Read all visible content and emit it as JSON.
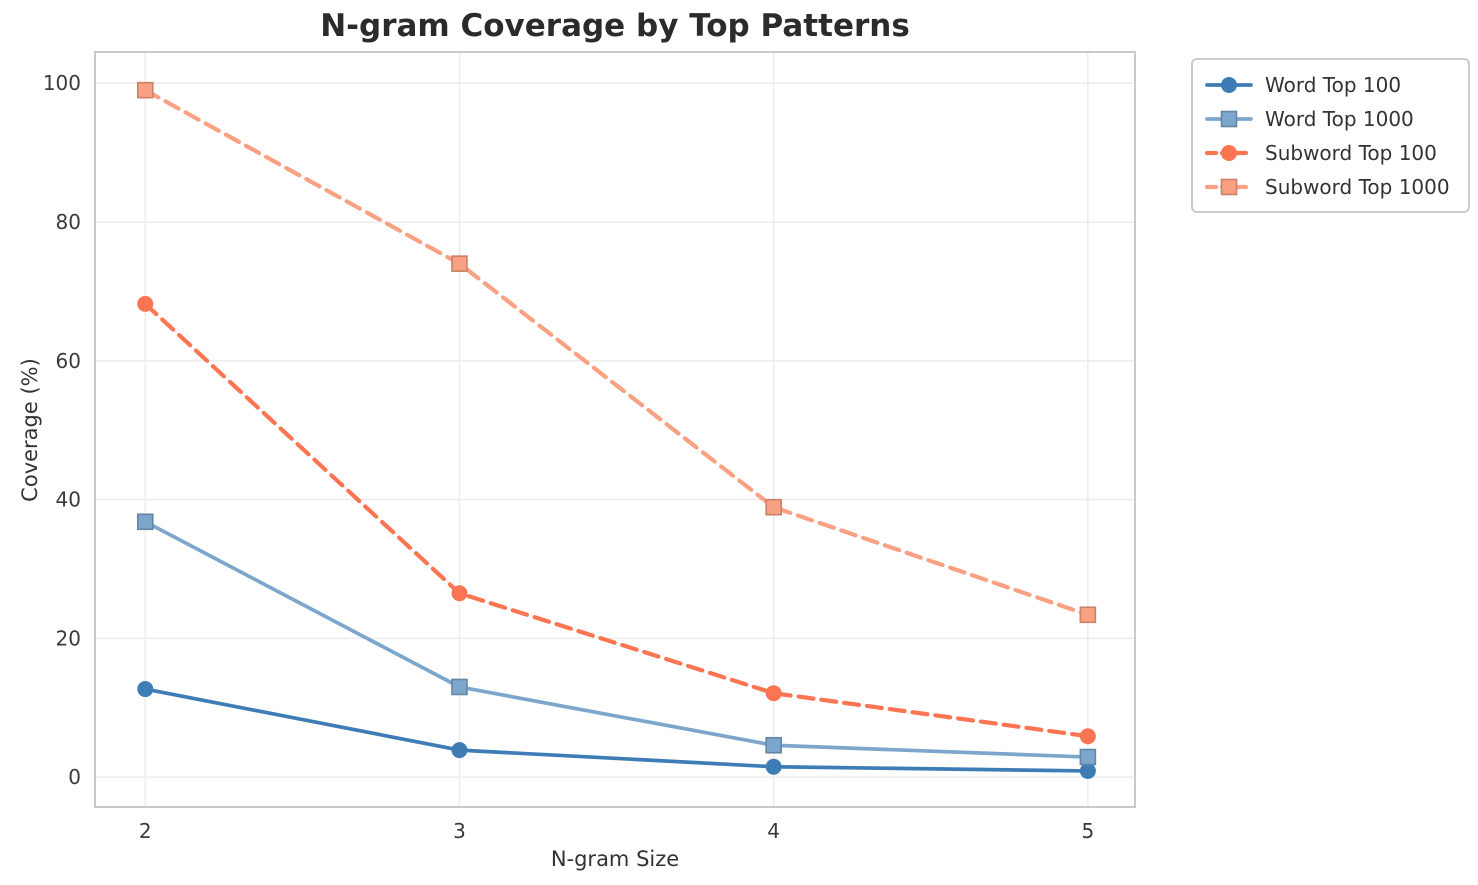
{
  "chart_data": {
    "type": "line",
    "title": "N-gram Coverage by Top Patterns",
    "xlabel": "N-gram Size",
    "ylabel": "Coverage (%)",
    "x": [
      2,
      3,
      4,
      5
    ],
    "x_tick_labels": [
      "2",
      "3",
      "4",
      "5"
    ],
    "y_ticks": [
      0,
      20,
      40,
      60,
      80,
      100
    ],
    "xlim": [
      1.84,
      5.15
    ],
    "ylim": [
      -4.3,
      104.5
    ],
    "grid": true,
    "legend_position": "outside-top-right",
    "colors": {
      "spine": "#c9c9c9",
      "gridline": "#ededed",
      "tick_label": "#3a3a3a",
      "title_text": "#2b2b2b"
    },
    "series": [
      {
        "name": "Word Top 100",
        "values": [
          12.7,
          3.9,
          1.5,
          0.9
        ],
        "color": "#3e7cb6",
        "line_style": "solid",
        "marker": "circle"
      },
      {
        "name": "Word Top 1000",
        "values": [
          36.8,
          13.0,
          4.6,
          2.9
        ],
        "color": "#7da6cd",
        "line_style": "solid",
        "marker": "square"
      },
      {
        "name": "Subword Top 100",
        "values": [
          68.2,
          26.5,
          12.1,
          5.9
        ],
        "color": "#fc7553",
        "line_style": "dashed",
        "marker": "circle"
      },
      {
        "name": "Subword Top 1000",
        "values": [
          99.0,
          74.0,
          38.9,
          23.4
        ],
        "color": "#fba183",
        "line_style": "dashed",
        "marker": "square"
      }
    ]
  }
}
